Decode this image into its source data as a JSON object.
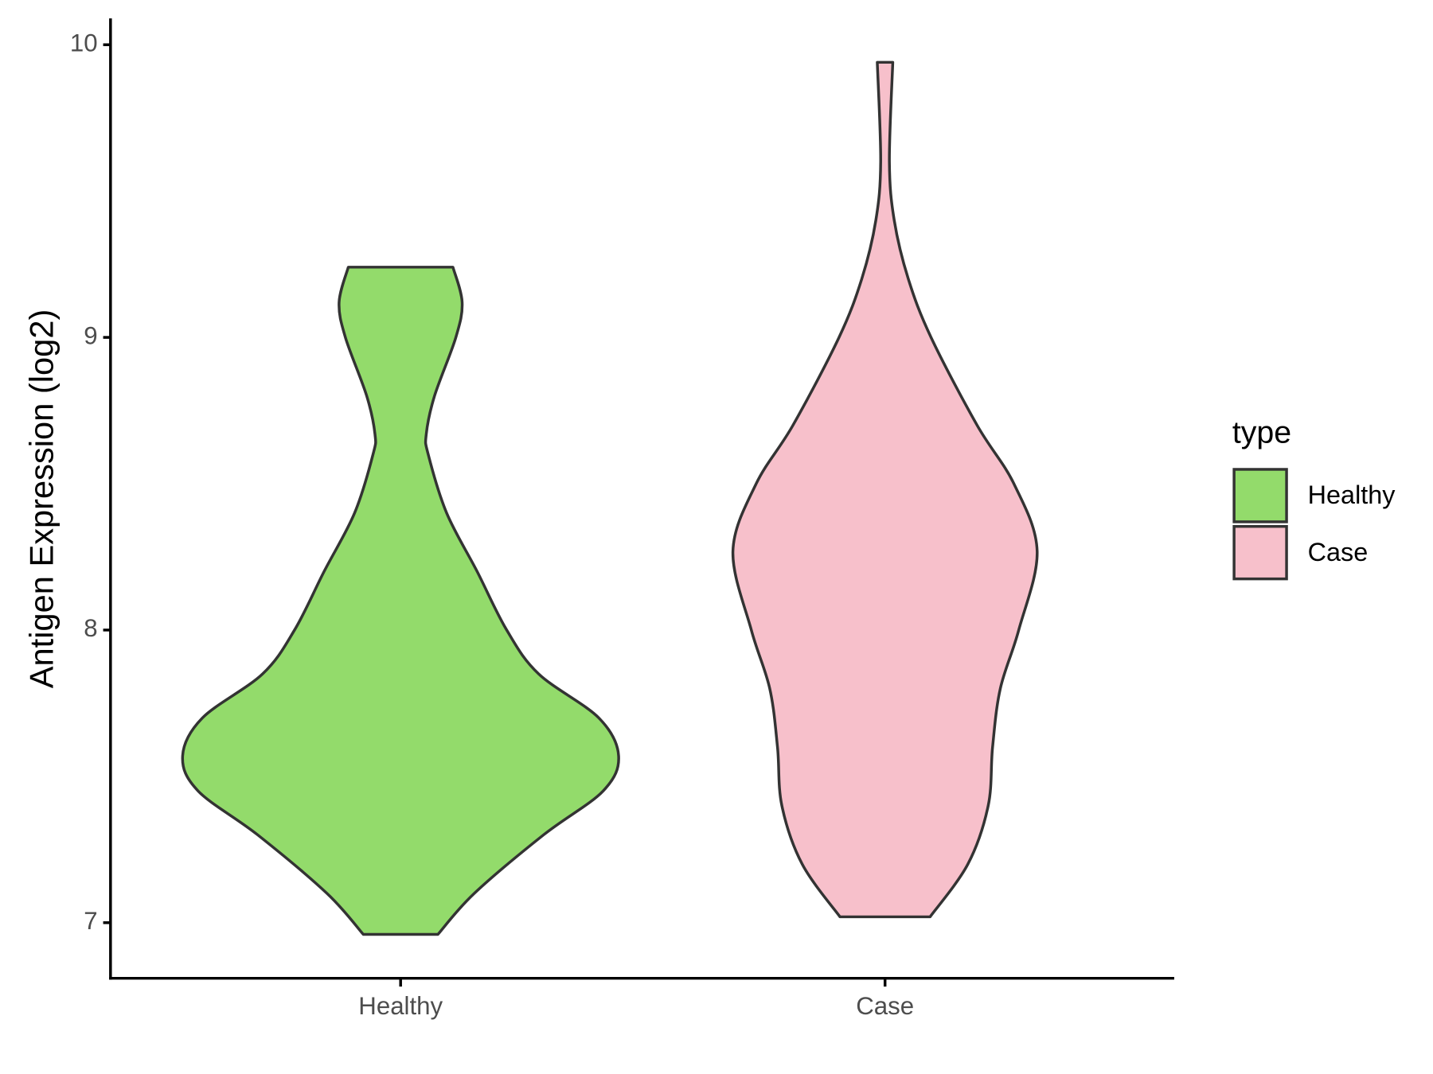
{
  "chart_data": {
    "type": "violin",
    "ylabel": "Antigen Expression (log2)",
    "categories": [
      "Healthy",
      "Case"
    ],
    "ylim": [
      6.81,
      10.09
    ],
    "yticks": [
      7,
      8,
      9,
      10
    ],
    "legend_title": "type",
    "legend": "right",
    "series": [
      {
        "name": "Healthy",
        "color": "#93DB6B",
        "y": [
          6.96,
          7.1,
          7.3,
          7.45,
          7.57,
          7.7,
          7.85,
          8.0,
          8.2,
          8.4,
          8.6,
          8.67,
          8.8,
          9.0,
          9.12,
          9.24
        ],
        "width": [
          0.077,
          0.152,
          0.295,
          0.418,
          0.45,
          0.409,
          0.285,
          0.219,
          0.158,
          0.095,
          0.057,
          0.053,
          0.07,
          0.114,
          0.127,
          0.108
        ]
      },
      {
        "name": "Case",
        "color": "#F7C0CB",
        "y": [
          7.02,
          7.2,
          7.4,
          7.6,
          7.8,
          8.0,
          8.27,
          8.5,
          8.7,
          9.0,
          9.2,
          9.4,
          9.6,
          9.94
        ],
        "width": [
          0.093,
          0.171,
          0.213,
          0.222,
          0.238,
          0.276,
          0.314,
          0.266,
          0.19,
          0.095,
          0.048,
          0.019,
          0.009,
          0.016
        ]
      }
    ]
  }
}
